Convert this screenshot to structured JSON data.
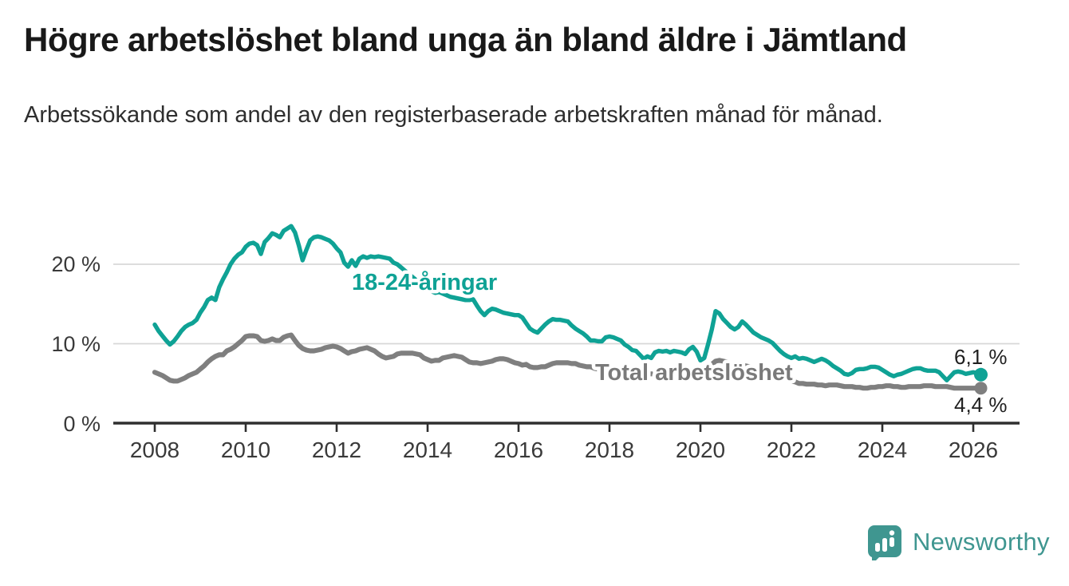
{
  "title": "Högre arbetslöshet bland unga än bland äldre i Jämtland",
  "subtitle": "Arbetssökande som andel av den registerbaserade arbetskraften månad för månad.",
  "branding": {
    "logo_text": "Newsworthy",
    "logo_icon": "speech-bubble-bar-chart-icon",
    "color": "#3f9690"
  },
  "chart_data": {
    "type": "line",
    "x_start_year": 2008,
    "x_step_months": 1,
    "x_end": "2026-03",
    "xlim": [
      2007.1,
      2027.0
    ],
    "ylim": [
      0,
      25.5
    ],
    "grid": "horizontal",
    "y_tick_labels": [
      "0 %",
      "10 %",
      "20 %"
    ],
    "x_tick_labels": [
      "2008",
      "2010",
      "2012",
      "2014",
      "2016",
      "2018",
      "2020",
      "2022",
      "2024",
      "2026"
    ],
    "series": [
      {
        "name": "18-24-åringar",
        "color": "#0fa295",
        "end_label": "6,1 %",
        "end_value": 6.1,
        "values": [
          12.4,
          11.6,
          11.0,
          10.4,
          9.9,
          10.3,
          10.9,
          11.6,
          12.1,
          12.4,
          12.6,
          13.0,
          13.9,
          14.6,
          15.5,
          15.8,
          15.5,
          17.1,
          18.1,
          19.0,
          20.0,
          20.7,
          21.2,
          21.5,
          22.2,
          22.6,
          22.7,
          22.4,
          21.3,
          22.8,
          23.3,
          23.9,
          23.7,
          23.4,
          24.2,
          24.5,
          24.8,
          24.0,
          22.4,
          20.5,
          21.8,
          23.0,
          23.4,
          23.5,
          23.4,
          23.2,
          23.0,
          22.6,
          22.0,
          21.5,
          20.2,
          19.7,
          20.5,
          19.8,
          20.7,
          21.0,
          20.8,
          21.0,
          20.9,
          21.0,
          20.9,
          20.8,
          20.7,
          20.2,
          20.0,
          19.6,
          19.2,
          18.8,
          18.4,
          18.0,
          17.6,
          17.2,
          16.9,
          16.6,
          16.4,
          16.5,
          16.3,
          16.1,
          15.9,
          15.8,
          15.7,
          15.6,
          15.5,
          15.5,
          15.6,
          14.8,
          14.1,
          13.6,
          14.1,
          14.4,
          14.3,
          14.1,
          13.9,
          13.8,
          13.7,
          13.6,
          13.6,
          13.3,
          12.6,
          11.9,
          11.6,
          11.4,
          11.9,
          12.4,
          12.8,
          13.1,
          13.0,
          13.0,
          12.9,
          12.8,
          12.3,
          11.9,
          11.6,
          11.3,
          10.9,
          10.4,
          10.4,
          10.3,
          10.3,
          10.8,
          10.9,
          10.8,
          10.6,
          10.4,
          9.9,
          9.6,
          9.2,
          9.1,
          8.6,
          8.1,
          8.4,
          8.2,
          8.9,
          9.1,
          9.0,
          9.1,
          8.9,
          9.1,
          9.0,
          8.9,
          8.7,
          9.3,
          9.6,
          9.0,
          7.9,
          8.2,
          9.9,
          11.8,
          14.1,
          13.8,
          13.1,
          12.6,
          12.1,
          11.8,
          12.1,
          12.8,
          12.4,
          11.9,
          11.4,
          11.1,
          10.8,
          10.6,
          10.4,
          10.1,
          9.6,
          9.1,
          8.7,
          8.4,
          8.2,
          8.4,
          8.1,
          8.2,
          8.1,
          7.9,
          7.7,
          7.9,
          8.1,
          7.9,
          7.6,
          7.2,
          6.9,
          6.6,
          6.2,
          6.1,
          6.3,
          6.7,
          6.8,
          6.8,
          6.9,
          7.1,
          7.1,
          7.0,
          6.7,
          6.4,
          6.1,
          5.9,
          6.1,
          6.2,
          6.4,
          6.6,
          6.8,
          6.9,
          6.9,
          6.7,
          6.6,
          6.6,
          6.6,
          6.4,
          5.9,
          5.4,
          5.9,
          6.4,
          6.5,
          6.4,
          6.2,
          6.3,
          6.4,
          6.3,
          6.1
        ]
      },
      {
        "name": "Total arbetslöshet",
        "color": "#7f7f7f",
        "end_label": "4,4 %",
        "end_value": 4.4,
        "values": [
          6.4,
          6.2,
          6.0,
          5.7,
          5.4,
          5.3,
          5.3,
          5.5,
          5.7,
          6.0,
          6.2,
          6.4,
          6.8,
          7.2,
          7.7,
          8.1,
          8.4,
          8.6,
          8.6,
          9.1,
          9.3,
          9.6,
          10.0,
          10.4,
          10.9,
          11.0,
          11.0,
          10.9,
          10.4,
          10.3,
          10.4,
          10.6,
          10.4,
          10.4,
          10.8,
          11.0,
          11.1,
          10.4,
          9.8,
          9.4,
          9.2,
          9.1,
          9.1,
          9.2,
          9.3,
          9.5,
          9.6,
          9.7,
          9.6,
          9.4,
          9.1,
          8.8,
          9.0,
          9.1,
          9.3,
          9.4,
          9.5,
          9.3,
          9.1,
          8.7,
          8.4,
          8.2,
          8.3,
          8.4,
          8.7,
          8.8,
          8.8,
          8.8,
          8.8,
          8.7,
          8.6,
          8.2,
          8.0,
          7.8,
          7.9,
          7.9,
          8.2,
          8.3,
          8.4,
          8.5,
          8.4,
          8.3,
          8.0,
          7.7,
          7.6,
          7.6,
          7.5,
          7.6,
          7.7,
          7.8,
          8.0,
          8.1,
          8.1,
          8.0,
          7.8,
          7.6,
          7.5,
          7.3,
          7.4,
          7.1,
          7.0,
          7.0,
          7.1,
          7.1,
          7.3,
          7.5,
          7.6,
          7.6,
          7.6,
          7.6,
          7.5,
          7.5,
          7.3,
          7.2,
          7.1,
          7.1,
          6.9,
          6.8,
          6.7,
          6.7,
          6.7,
          6.7,
          6.7,
          6.6,
          6.5,
          6.5,
          6.4,
          6.4,
          6.3,
          6.3,
          6.2,
          6.2,
          6.2,
          6.2,
          6.1,
          6.1,
          6.1,
          6.0,
          6.0,
          6.0,
          6.0,
          6.0,
          5.9,
          6.0,
          6.1,
          6.2,
          6.8,
          7.4,
          7.8,
          7.9,
          7.8,
          7.7,
          7.5,
          7.4,
          7.3,
          7.3,
          7.2,
          7.1,
          7.0,
          6.8,
          6.6,
          6.4,
          6.3,
          6.1,
          6.0,
          5.9,
          5.7,
          5.5,
          5.3,
          5.2,
          5.0,
          5.0,
          4.9,
          4.9,
          4.9,
          4.8,
          4.8,
          4.7,
          4.8,
          4.8,
          4.8,
          4.7,
          4.6,
          4.6,
          4.6,
          4.5,
          4.5,
          4.4,
          4.4,
          4.5,
          4.5,
          4.6,
          4.6,
          4.7,
          4.7,
          4.6,
          4.6,
          4.5,
          4.5,
          4.6,
          4.6,
          4.6,
          4.6,
          4.7,
          4.7,
          4.7,
          4.6,
          4.6,
          4.6,
          4.6,
          4.5,
          4.4,
          4.4,
          4.4,
          4.4,
          4.4,
          4.4,
          4.4,
          4.4
        ]
      }
    ]
  }
}
